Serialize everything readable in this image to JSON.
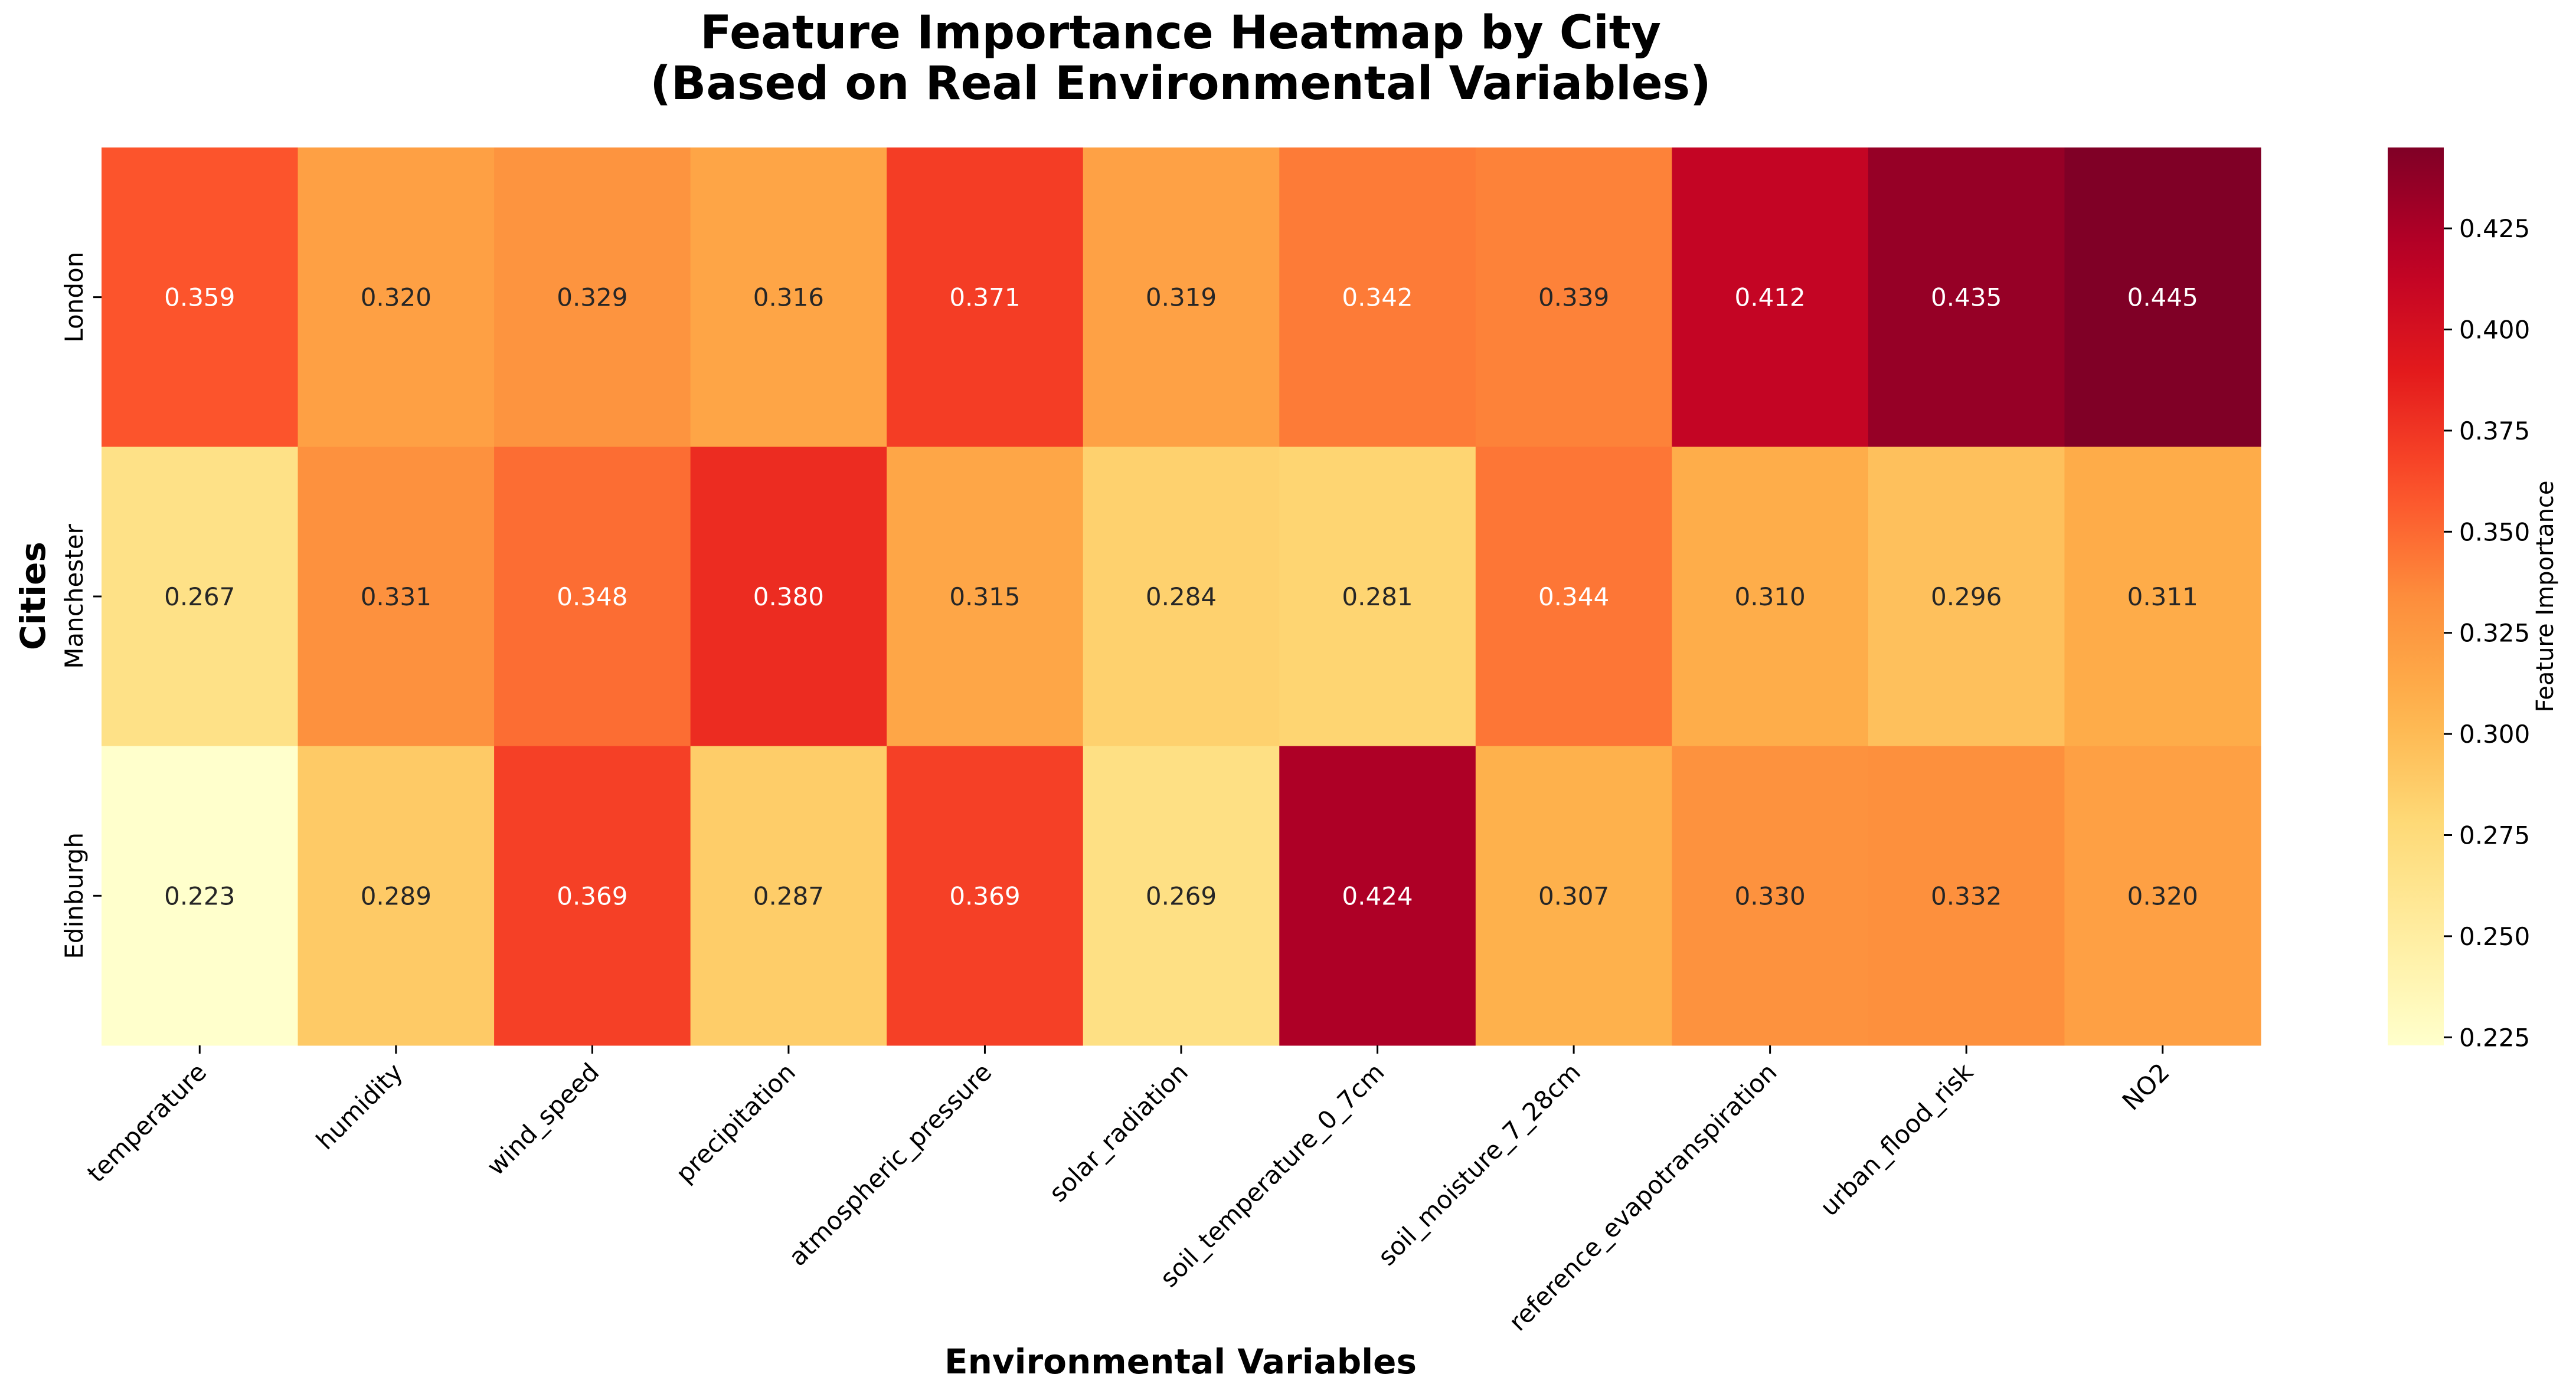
{
  "chart_data": {
    "type": "heatmap",
    "title_lines": [
      "Feature Importance Heatmap by City",
      "(Based on Real Environmental Variables)"
    ],
    "xlabel": "Environmental Variables",
    "ylabel": "Cities",
    "x_categories": [
      "temperature",
      "humidity",
      "wind_speed",
      "precipitation",
      "atmospheric_pressure",
      "solar_radiation",
      "soil_temperature_0_7cm",
      "soil_moisture_7_28cm",
      "reference_evapotranspiration",
      "urban_flood_risk",
      "NO2"
    ],
    "y_categories": [
      "London",
      "Manchester",
      "Edinburgh"
    ],
    "values": [
      [
        0.359,
        0.32,
        0.329,
        0.316,
        0.371,
        0.319,
        0.342,
        0.339,
        0.412,
        0.435,
        0.445
      ],
      [
        0.267,
        0.331,
        0.348,
        0.38,
        0.315,
        0.284,
        0.281,
        0.344,
        0.31,
        0.296,
        0.311
      ],
      [
        0.223,
        0.289,
        0.369,
        0.287,
        0.369,
        0.269,
        0.424,
        0.307,
        0.33,
        0.332,
        0.32
      ]
    ],
    "value_format": "0.000",
    "colormap": "YlOrRd",
    "colorbar": {
      "label": "Feature Importance",
      "range": [
        0.223,
        0.445
      ],
      "ticks": [
        0.225,
        0.25,
        0.275,
        0.3,
        0.325,
        0.35,
        0.375,
        0.4,
        0.425
      ],
      "tick_labels": [
        "0.225",
        "0.250",
        "0.275",
        "0.300",
        "0.325",
        "0.350",
        "0.375",
        "0.400",
        "0.425"
      ]
    },
    "colors": {
      "text_dark": "#262626",
      "text_light": "#ffffff",
      "tick_color": "#000000",
      "ramp": [
        "#ffffcc",
        "#ffeda0",
        "#fed976",
        "#feb24c",
        "#fd8d3c",
        "#fc4e2a",
        "#e31a1c",
        "#bd0026",
        "#800026"
      ]
    }
  }
}
